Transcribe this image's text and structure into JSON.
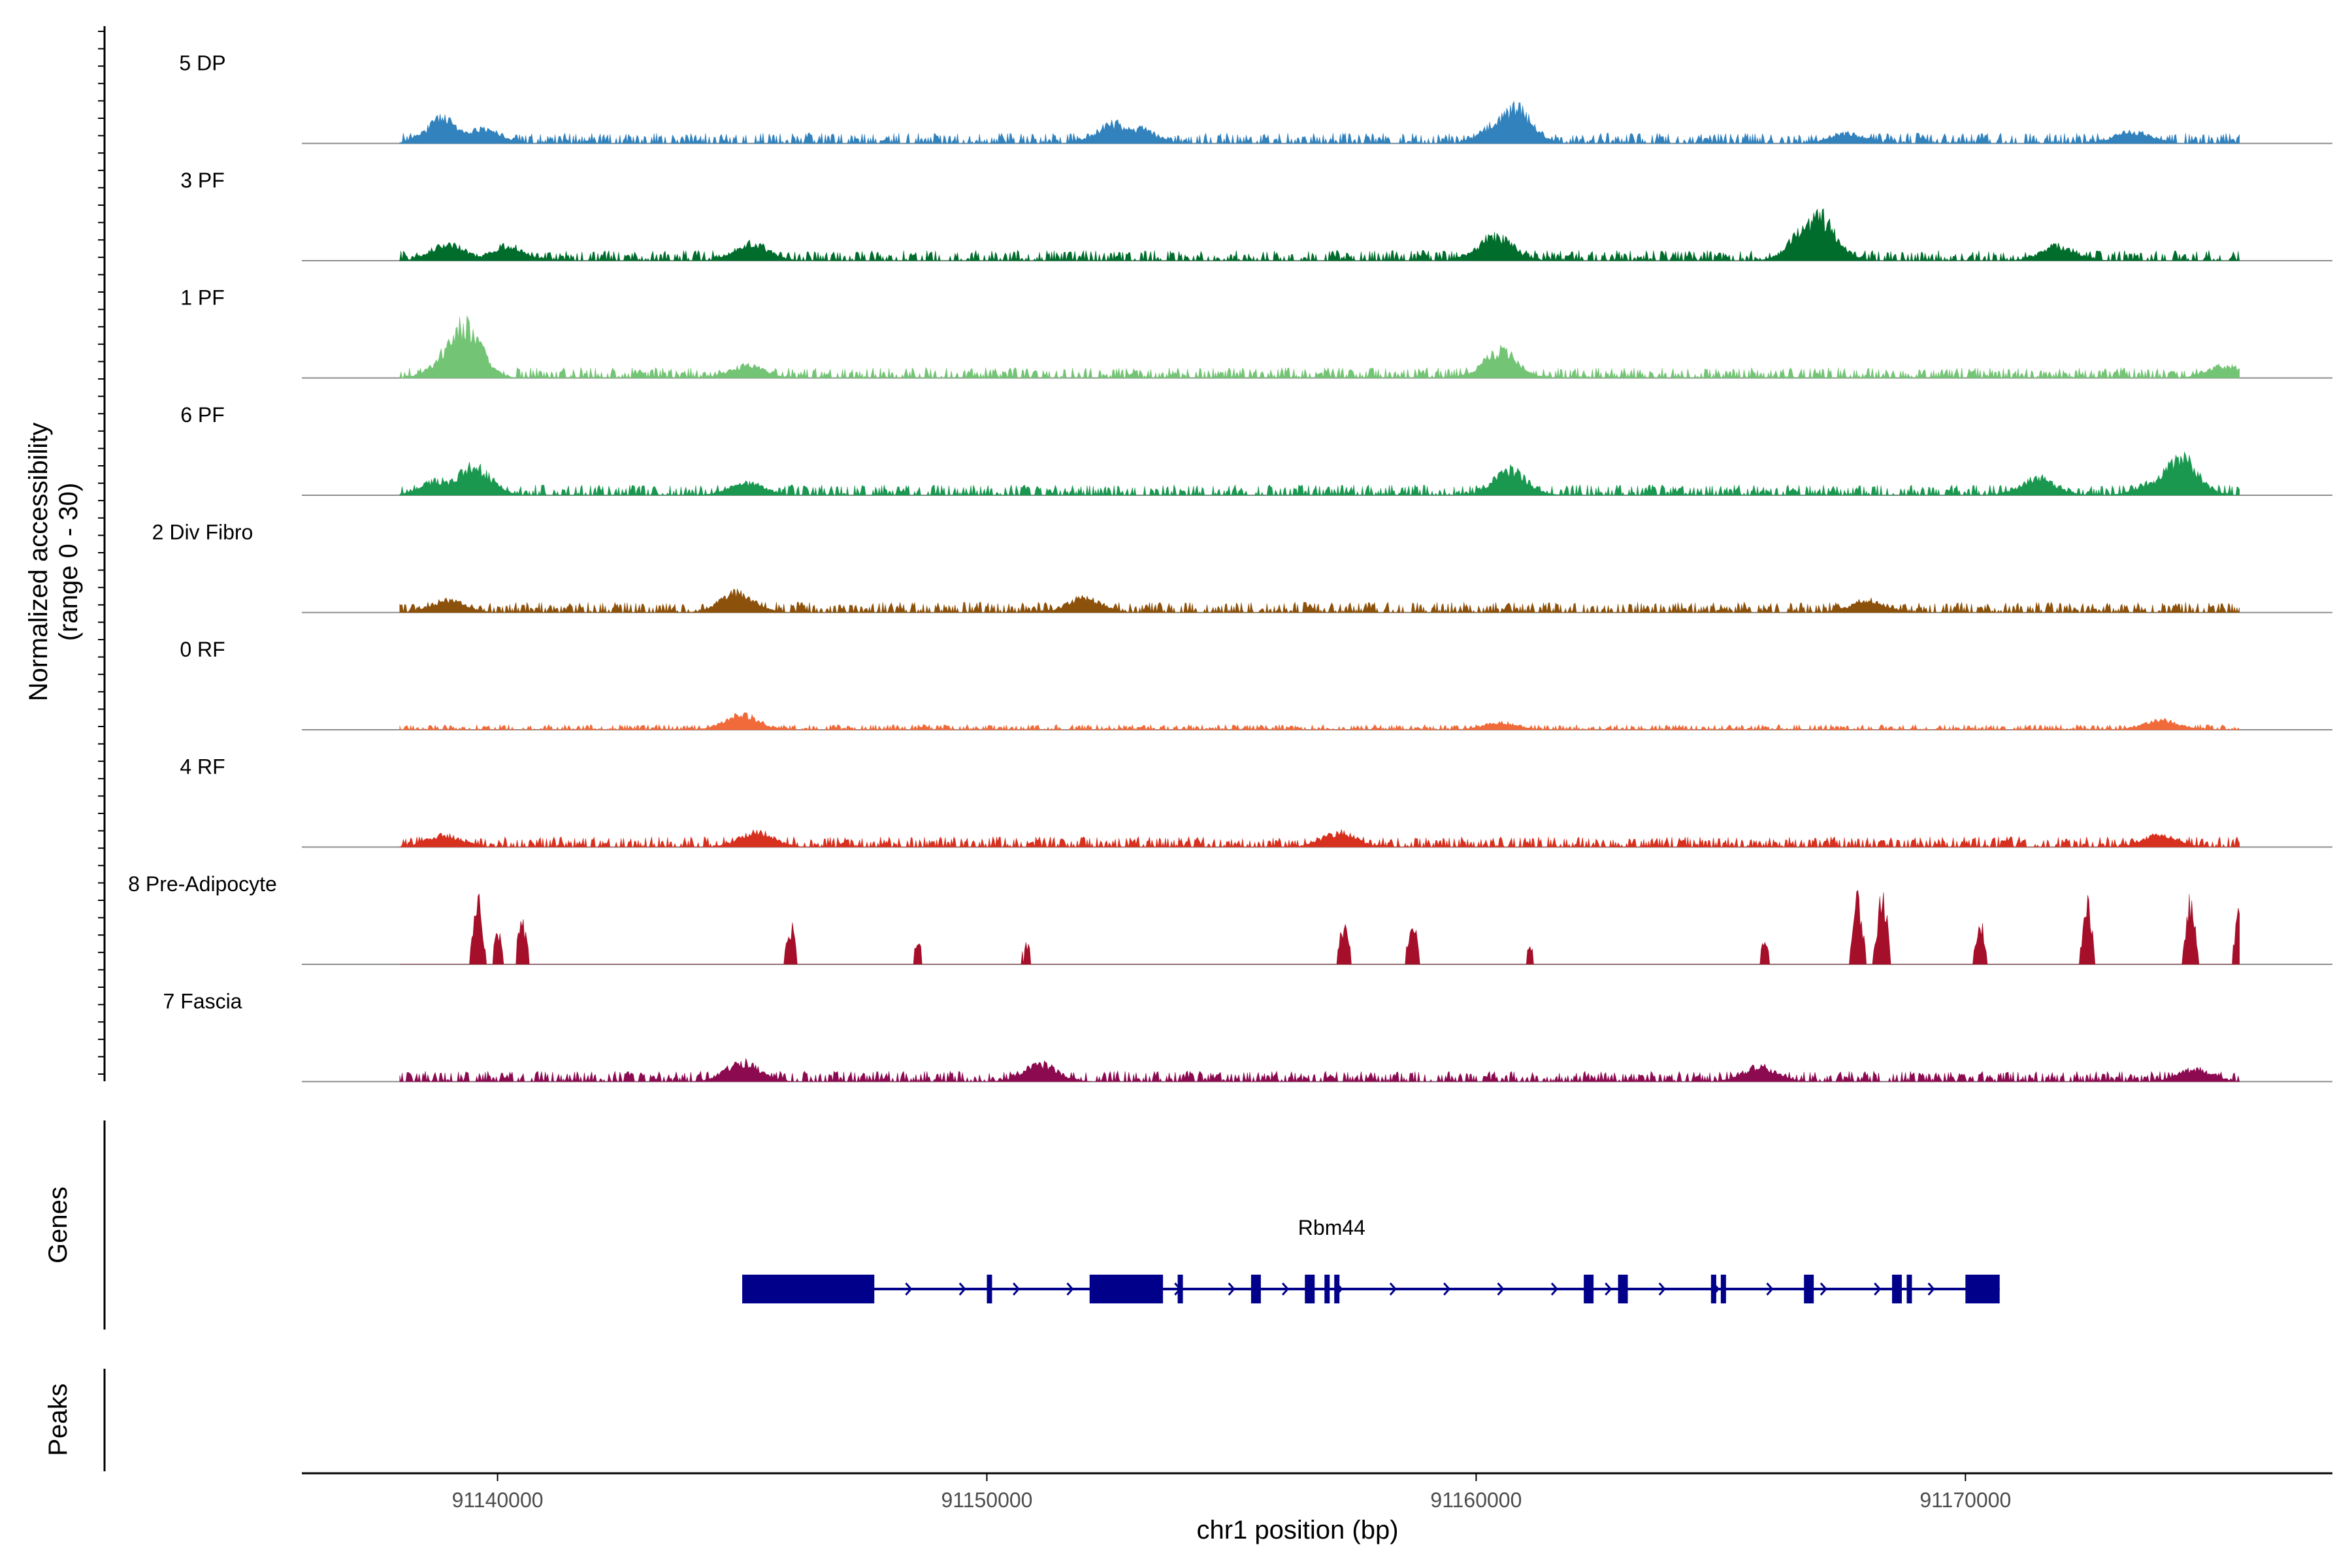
{
  "chart_data": {
    "type": "area",
    "subtype": "genome-coverage-track",
    "y_axis_label_line1": "Normalized accessibility",
    "y_axis_label_line2": "(range 0 - 30)",
    "ylim": [
      0,
      30
    ],
    "xlabel": "chr1 position (bp)",
    "xlim": [
      91136000,
      91177500
    ],
    "x_ticks": [
      91140000,
      91150000,
      91160000,
      91170000
    ],
    "x_tick_labels": [
      "91140000",
      "91150000",
      "91160000",
      "91170000"
    ],
    "tracks": [
      {
        "name": "5 DP",
        "color": "#3182BD",
        "data_start": 91138000,
        "data_end": 91175600,
        "baseline": 2,
        "peaks": [
          [
            91138900,
            10
          ],
          [
            91139700,
            6
          ],
          [
            91152600,
            8
          ],
          [
            91153100,
            6
          ],
          [
            91160500,
            9
          ],
          [
            91160800,
            14
          ],
          [
            91167600,
            4
          ],
          [
            91173400,
            5
          ]
        ]
      },
      {
        "name": "3 PF",
        "color": "#006D2C",
        "data_start": 91138000,
        "data_end": 91175600,
        "baseline": 2,
        "peaks": [
          [
            91139000,
            7
          ],
          [
            91140200,
            6
          ],
          [
            91145200,
            7
          ],
          [
            91160400,
            10
          ],
          [
            91166800,
            14
          ],
          [
            91167000,
            18
          ],
          [
            91171900,
            6
          ]
        ]
      },
      {
        "name": "1 PF",
        "color": "#74C476",
        "data_start": 91138000,
        "data_end": 91175600,
        "baseline": 2,
        "peaks": [
          [
            91139300,
            22
          ],
          [
            91139000,
            8
          ],
          [
            91145100,
            5
          ],
          [
            91160500,
            11
          ],
          [
            91175300,
            5
          ]
        ]
      },
      {
        "name": "6 PF",
        "color": "#1A9850",
        "data_start": 91138000,
        "data_end": 91175600,
        "baseline": 2,
        "peaks": [
          [
            91138800,
            6
          ],
          [
            91139500,
            12
          ],
          [
            91145100,
            5
          ],
          [
            91160700,
            10
          ],
          [
            91171500,
            7
          ],
          [
            91174400,
            15
          ],
          [
            91173900,
            6
          ]
        ]
      },
      {
        "name": "2 Div Fibro",
        "color": "#8C510A",
        "data_start": 91138000,
        "data_end": 91175600,
        "baseline": 2,
        "peaks": [
          [
            91139000,
            5
          ],
          [
            91144900,
            8
          ],
          [
            91152000,
            6
          ],
          [
            91168000,
            5
          ]
        ]
      },
      {
        "name": "0 RF",
        "color": "#F16A3A",
        "data_start": 91138000,
        "data_end": 91175600,
        "baseline": 1,
        "peaks": [
          [
            91145000,
            6
          ],
          [
            91160500,
            3
          ],
          [
            91174000,
            4
          ]
        ]
      },
      {
        "name": "4 RF",
        "color": "#D7301F",
        "data_start": 91138000,
        "data_end": 91175600,
        "baseline": 2,
        "peaks": [
          [
            91138900,
            5
          ],
          [
            91145300,
            6
          ],
          [
            91157200,
            6
          ],
          [
            91174000,
            5
          ]
        ]
      },
      {
        "name": "8 Pre-Adipocyte",
        "color": "#A50F2A",
        "data_start": 91138000,
        "data_end": 91175600,
        "baseline": 0,
        "sparse": true,
        "peaks": [
          [
            91139600,
            24
          ],
          [
            91140000,
            12
          ],
          [
            91140500,
            16
          ],
          [
            91146000,
            15
          ],
          [
            91148600,
            8
          ],
          [
            91150800,
            8
          ],
          [
            91157300,
            15
          ],
          [
            91158700,
            16
          ],
          [
            91161100,
            6
          ],
          [
            91165900,
            8
          ],
          [
            91167800,
            26
          ],
          [
            91168300,
            30
          ],
          [
            91170300,
            17
          ],
          [
            91172500,
            24
          ],
          [
            91174600,
            24
          ],
          [
            91175600,
            20
          ]
        ]
      },
      {
        "name": "7 Fascia",
        "color": "#8B0A50",
        "data_start": 91138000,
        "data_end": 91175600,
        "baseline": 2,
        "peaks": [
          [
            91145000,
            8
          ],
          [
            91151100,
            7
          ],
          [
            91165800,
            6
          ],
          [
            91174700,
            5
          ]
        ]
      }
    ],
    "genes_panel_label": "Genes",
    "genes": [
      {
        "name": "Rbm44",
        "start": 91145000,
        "end": 91170700,
        "strand": "+",
        "exons": [
          [
            91145000,
            91147700
          ],
          [
            91150000,
            91150100
          ],
          [
            91152100,
            91153600
          ],
          [
            91153900,
            91154000
          ],
          [
            91155400,
            91155600
          ],
          [
            91156500,
            91156700
          ],
          [
            91156900,
            91157000
          ],
          [
            91157100,
            91157200
          ],
          [
            91162200,
            91162400
          ],
          [
            91162900,
            91163100
          ],
          [
            91164800,
            91164900
          ],
          [
            91165000,
            91165100
          ],
          [
            91166700,
            91166900
          ],
          [
            91168500,
            91168700
          ],
          [
            91168800,
            91168900
          ],
          [
            91170000,
            91170700
          ]
        ]
      }
    ],
    "peaks_panel_label": "Peaks",
    "peaks_regions": []
  }
}
